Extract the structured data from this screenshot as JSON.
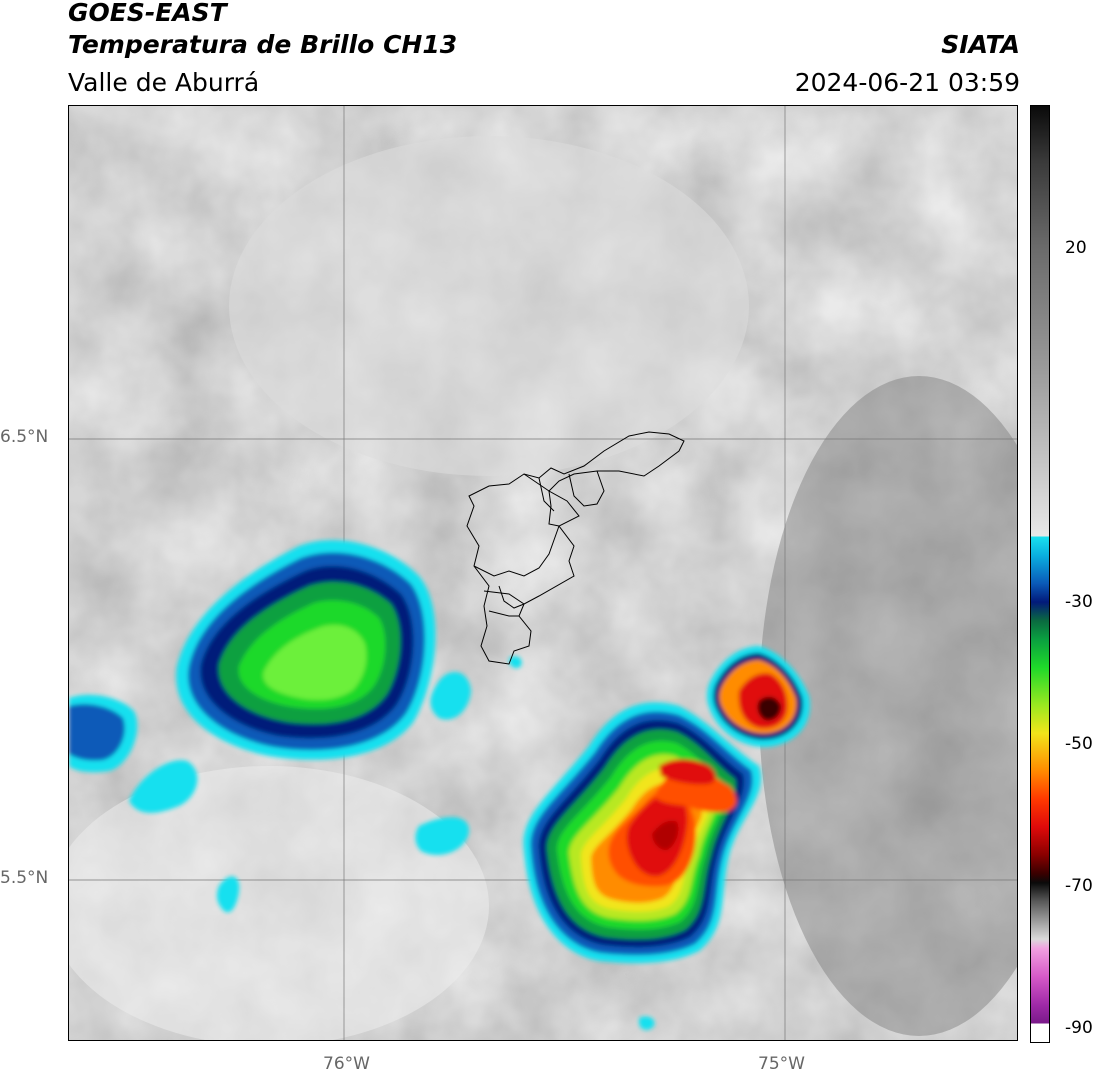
{
  "header": {
    "satellite": "GOES-EAST",
    "product": "Temperatura de Brillo CH13",
    "region": "Valle de Aburrá",
    "agency": "SIATA",
    "datetime": "2024-06-21 03:59"
  },
  "map": {
    "lat_labels": [
      "6.5°N",
      "5.5°N"
    ],
    "lon_labels": [
      "76°W",
      "75°W"
    ]
  },
  "colorbar": {
    "ticks": [
      "20",
      "-30",
      "-50",
      "-70",
      "-90"
    ],
    "colors": {
      "cyan": "#19e0ef",
      "blue": "#0a5ab8",
      "navy": "#021a7a",
      "green": "#1fd92a",
      "yellow": "#f2e51a",
      "orange": "#ff8c00",
      "red": "#e00a0a",
      "darkred": "#5a0000",
      "magenta": "#d65ac8",
      "purple": "#7a1a8a"
    }
  }
}
